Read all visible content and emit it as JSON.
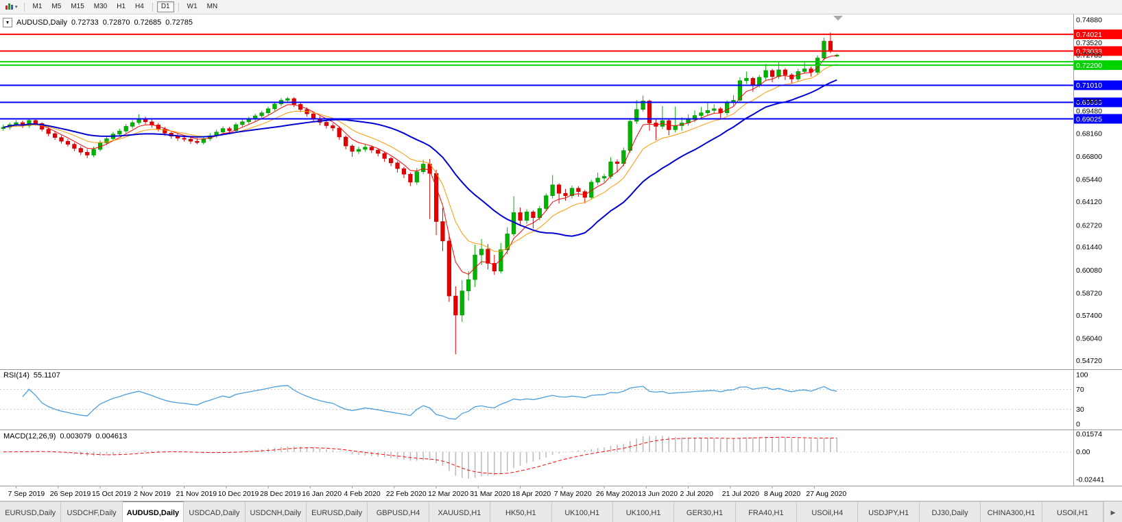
{
  "icons": {
    "occ_caret": "▼",
    "toolbar_caret": "▾",
    "tab_scroll_right": "▶"
  },
  "toolbar": {
    "timeframes": [
      "M1",
      "M5",
      "M15",
      "M30",
      "H1",
      "H4",
      "D1",
      "W1",
      "MN"
    ],
    "active_timeframe": "D1"
  },
  "chart": {
    "symbol": "AUDUSD,Daily",
    "ohlc": {
      "open": "0.72733",
      "high": "0.72870",
      "low": "0.72685",
      "close": "0.72785"
    }
  },
  "panels": {
    "rsi": {
      "title": "RSI(14)",
      "value": "55.1107",
      "axis": [
        "100",
        "70",
        "30",
        "0"
      ]
    },
    "macd": {
      "title": "MACD(12,26,9)",
      "value1": "0.003079",
      "value2": "0.004613",
      "axis": [
        "0.01574",
        "0.00",
        "-0.02441"
      ]
    }
  },
  "tabs": {
    "active_index": 2,
    "items": [
      "EURUSD,Daily",
      "USDCHF,Daily",
      "AUDUSD,Daily",
      "USDCAD,Daily",
      "USDCNH,Daily",
      "EURUSD,Daily",
      "GBPUSD,H4",
      "XAUUSD,H1",
      "HK50,H1",
      "UK100,H1",
      "UK100,H1",
      "GER30,H1",
      "FRA40,H1",
      "USOil,H4",
      "USDJPY,H1",
      "DJ30,Daily",
      "CHINA300,H1",
      "USOil,H1"
    ]
  },
  "chart_data": {
    "type": "candlestick",
    "symbol": "AUDUSD",
    "timeframe": "Daily",
    "y_range": [
      0.5472,
      0.7488
    ],
    "colors": {
      "up": "#00B400",
      "up_border": "#008800",
      "down": "#E60000",
      "down_border": "#B40000"
    },
    "y_ticks": [
      "0.74880",
      "0.73520",
      "0.70080",
      "0.69480",
      "0.68160",
      "0.66800",
      "0.65440",
      "0.64120",
      "0.62720",
      "0.61440",
      "0.60080",
      "0.58720",
      "0.57400",
      "0.56040",
      "0.54720"
    ],
    "x_labels": [
      "7 Sep 2019",
      "26 Sep 2019",
      "15 Oct 2019",
      "2 Nov 2019",
      "21 Nov 2019",
      "10 Dec 2019",
      "28 Dec 2019",
      "16 Jan 2020",
      "4 Feb 2020",
      "22 Feb 2020",
      "12 Mar 2020",
      "31 Mar 2020",
      "18 Apr 2020",
      "7 May 2020",
      "26 May 2020",
      "13 Jun 2020",
      "2 Jul 2020",
      "21 Jul 2020",
      "8 Aug 2020",
      "27 Aug 2020"
    ],
    "hlines": [
      {
        "price": 0.74021,
        "color": "#FF0000",
        "label": "0.74021"
      },
      {
        "price": 0.73033,
        "color": "#FF0000",
        "label": "0.73033"
      },
      {
        "price": 0.724,
        "color": "#00D200",
        "label": ""
      },
      {
        "price": 0.722,
        "color": "#00D200",
        "label": "0.72200"
      },
      {
        "price": 0.7101,
        "color": "#0000FF",
        "label": "0.71010"
      },
      {
        "price": 0.69999,
        "color": "#0000FF",
        "label": "0.69999"
      },
      {
        "price": 0.69025,
        "color": "#0000FF",
        "label": "0.69025"
      }
    ],
    "moving_averages": [
      {
        "period": 5,
        "method": "ema",
        "color": "#FF0000",
        "width": 1
      },
      {
        "period": 11,
        "method": "ema",
        "color": "#FF9900",
        "width": 1
      },
      {
        "period": 22,
        "method": "sma",
        "color": "#0000D2",
        "width": 2
      }
    ],
    "indicators": [
      {
        "type": "rsi",
        "label": "RSI(14) 55.1107",
        "period": 14,
        "levels": [
          70,
          30
        ],
        "color": "#4A9EDE"
      },
      {
        "type": "macd",
        "label": "MACD(12,26,9) 0.003079 0.004613",
        "fast": 12,
        "slow": 26,
        "signal": 9,
        "histogram_color": "#BDBDBD",
        "signal_color": "#FF0000"
      }
    ],
    "candles": [
      [
        0.6845,
        0.6868,
        0.6832,
        0.6852
      ],
      [
        0.6852,
        0.688,
        0.684,
        0.6868
      ],
      [
        0.6868,
        0.6895,
        0.6855,
        0.688
      ],
      [
        0.688,
        0.6892,
        0.6848,
        0.6862
      ],
      [
        0.6862,
        0.6905,
        0.685,
        0.6893
      ],
      [
        0.6893,
        0.6902,
        0.6862,
        0.6875
      ],
      [
        0.6875,
        0.6882,
        0.6828,
        0.6841
      ],
      [
        0.6841,
        0.6852,
        0.68,
        0.6815
      ],
      [
        0.6815,
        0.6828,
        0.6778,
        0.6792
      ],
      [
        0.6792,
        0.6805,
        0.6756,
        0.677
      ],
      [
        0.677,
        0.6782,
        0.6738,
        0.6752
      ],
      [
        0.6752,
        0.6762,
        0.6712,
        0.6728
      ],
      [
        0.6728,
        0.674,
        0.6688,
        0.6705
      ],
      [
        0.6705,
        0.6722,
        0.667,
        0.6688
      ],
      [
        0.6688,
        0.6738,
        0.6675,
        0.6722
      ],
      [
        0.6722,
        0.6775,
        0.671,
        0.676
      ],
      [
        0.676,
        0.68,
        0.6748,
        0.6785
      ],
      [
        0.6785,
        0.6825,
        0.6772,
        0.6812
      ],
      [
        0.6812,
        0.6845,
        0.68,
        0.683
      ],
      [
        0.683,
        0.6872,
        0.6818,
        0.6858
      ],
      [
        0.6858,
        0.6895,
        0.6845,
        0.688
      ],
      [
        0.688,
        0.6929,
        0.6868,
        0.6902
      ],
      [
        0.6902,
        0.6915,
        0.687,
        0.6885
      ],
      [
        0.6885,
        0.6898,
        0.685,
        0.6866
      ],
      [
        0.6866,
        0.6878,
        0.6828,
        0.6842
      ],
      [
        0.6842,
        0.6855,
        0.6802,
        0.6818
      ],
      [
        0.6818,
        0.6832,
        0.6785,
        0.68
      ],
      [
        0.68,
        0.6815,
        0.6772,
        0.6788
      ],
      [
        0.6788,
        0.6805,
        0.6768,
        0.6782
      ],
      [
        0.6782,
        0.6795,
        0.6754,
        0.677
      ],
      [
        0.677,
        0.6788,
        0.6752,
        0.6762
      ],
      [
        0.6762,
        0.6798,
        0.675,
        0.6785
      ],
      [
        0.6785,
        0.6818,
        0.6772,
        0.6802
      ],
      [
        0.6802,
        0.6838,
        0.679,
        0.6824
      ],
      [
        0.6824,
        0.6858,
        0.6812,
        0.6845
      ],
      [
        0.6845,
        0.6855,
        0.6815,
        0.6832
      ],
      [
        0.6832,
        0.688,
        0.682,
        0.6868
      ],
      [
        0.6868,
        0.6898,
        0.6855,
        0.6885
      ],
      [
        0.6885,
        0.6915,
        0.6872,
        0.6902
      ],
      [
        0.6902,
        0.6932,
        0.689,
        0.692
      ],
      [
        0.692,
        0.695,
        0.6908,
        0.6938
      ],
      [
        0.6938,
        0.6975,
        0.6925,
        0.6962
      ],
      [
        0.6962,
        0.7002,
        0.695,
        0.699
      ],
      [
        0.699,
        0.7025,
        0.6978,
        0.7012
      ],
      [
        0.7012,
        0.7032,
        0.6995,
        0.7022
      ],
      [
        0.7022,
        0.703,
        0.6972,
        0.6988
      ],
      [
        0.6988,
        0.7,
        0.6942,
        0.6958
      ],
      [
        0.6958,
        0.697,
        0.6915,
        0.6932
      ],
      [
        0.6932,
        0.6945,
        0.6888,
        0.6905
      ],
      [
        0.6905,
        0.6918,
        0.6865,
        0.6882
      ],
      [
        0.6882,
        0.6895,
        0.6845,
        0.6862
      ],
      [
        0.6862,
        0.6875,
        0.683,
        0.6848
      ],
      [
        0.6848,
        0.6858,
        0.6778,
        0.6795
      ],
      [
        0.6795,
        0.6805,
        0.6722,
        0.6742
      ],
      [
        0.6742,
        0.6752,
        0.6678,
        0.671
      ],
      [
        0.671,
        0.6738,
        0.6695,
        0.6722
      ],
      [
        0.6722,
        0.675,
        0.6708,
        0.6735
      ],
      [
        0.6735,
        0.6745,
        0.67,
        0.6718
      ],
      [
        0.6718,
        0.6728,
        0.668,
        0.6698
      ],
      [
        0.6698,
        0.6708,
        0.6648,
        0.6668
      ],
      [
        0.6668,
        0.6678,
        0.6622,
        0.6642
      ],
      [
        0.6642,
        0.6652,
        0.6585,
        0.6608
      ],
      [
        0.6608,
        0.6618,
        0.6552,
        0.6575
      ],
      [
        0.6575,
        0.6585,
        0.6505,
        0.6528
      ],
      [
        0.6528,
        0.6612,
        0.6512,
        0.659
      ],
      [
        0.659,
        0.666,
        0.6575,
        0.6635
      ],
      [
        0.6635,
        0.6665,
        0.631,
        0.658
      ],
      [
        0.658,
        0.6602,
        0.6215,
        0.6295
      ],
      [
        0.6295,
        0.6375,
        0.612,
        0.618
      ],
      [
        0.618,
        0.6218,
        0.582,
        0.5855
      ],
      [
        0.5855,
        0.5912,
        0.551,
        0.5742
      ],
      [
        0.5742,
        0.5948,
        0.5702,
        0.5885
      ],
      [
        0.5885,
        0.6002,
        0.5828,
        0.5952
      ],
      [
        0.5952,
        0.6158,
        0.5908,
        0.6098
      ],
      [
        0.6098,
        0.6192,
        0.6038,
        0.6132
      ],
      [
        0.6132,
        0.6162,
        0.6012,
        0.6048
      ],
      [
        0.6048,
        0.6098,
        0.598,
        0.6002
      ],
      [
        0.6002,
        0.6168,
        0.5988,
        0.6128
      ],
      [
        0.6128,
        0.6262,
        0.6102,
        0.6222
      ],
      [
        0.6222,
        0.6445,
        0.6208,
        0.6348
      ],
      [
        0.6348,
        0.6378,
        0.6268,
        0.6302
      ],
      [
        0.6302,
        0.6368,
        0.6282,
        0.6352
      ],
      [
        0.6352,
        0.6362,
        0.6255,
        0.6318
      ],
      [
        0.6318,
        0.6388,
        0.6302,
        0.6372
      ],
      [
        0.6372,
        0.6462,
        0.6358,
        0.6448
      ],
      [
        0.6448,
        0.657,
        0.6432,
        0.6512
      ],
      [
        0.6512,
        0.6522,
        0.6402,
        0.6462
      ],
      [
        0.6462,
        0.6488,
        0.6418,
        0.6448
      ],
      [
        0.6448,
        0.6508,
        0.6432,
        0.6492
      ],
      [
        0.6492,
        0.6505,
        0.6442,
        0.6472
      ],
      [
        0.6472,
        0.6482,
        0.6403,
        0.6438
      ],
      [
        0.6438,
        0.6542,
        0.6425,
        0.6528
      ],
      [
        0.6528,
        0.6585,
        0.6512,
        0.6552
      ],
      [
        0.6552,
        0.6578,
        0.6528,
        0.6562
      ],
      [
        0.6562,
        0.6675,
        0.6548,
        0.6648
      ],
      [
        0.6648,
        0.6662,
        0.6585,
        0.6638
      ],
      [
        0.6638,
        0.6732,
        0.6622,
        0.6715
      ],
      [
        0.6715,
        0.6905,
        0.6702,
        0.6888
      ],
      [
        0.6888,
        0.7013,
        0.6872,
        0.6958
      ],
      [
        0.6958,
        0.704,
        0.6945,
        0.7008
      ],
      [
        0.7008,
        0.7015,
        0.6832,
        0.6878
      ],
      [
        0.6878,
        0.6902,
        0.6776,
        0.6858
      ],
      [
        0.6858,
        0.6977,
        0.6842,
        0.6892
      ],
      [
        0.6892,
        0.6905,
        0.6805,
        0.6838
      ],
      [
        0.6838,
        0.6975,
        0.6822,
        0.6862
      ],
      [
        0.6862,
        0.6912,
        0.6832,
        0.6878
      ],
      [
        0.6878,
        0.6928,
        0.6862,
        0.6898
      ],
      [
        0.6898,
        0.6952,
        0.6882,
        0.6922
      ],
      [
        0.6922,
        0.6972,
        0.6908,
        0.6938
      ],
      [
        0.6938,
        0.6998,
        0.6922,
        0.6952
      ],
      [
        0.6952,
        0.6988,
        0.6932,
        0.6962
      ],
      [
        0.6962,
        0.6972,
        0.6902,
        0.6938
      ],
      [
        0.6938,
        0.7012,
        0.6922,
        0.6998
      ],
      [
        0.6998,
        0.7042,
        0.6982,
        0.7012
      ],
      [
        0.7012,
        0.7148,
        0.6998,
        0.7128
      ],
      [
        0.7128,
        0.7182,
        0.7108,
        0.7142
      ],
      [
        0.7142,
        0.7152,
        0.7062,
        0.7102
      ],
      [
        0.7102,
        0.7162,
        0.7088,
        0.7148
      ],
      [
        0.7148,
        0.7227,
        0.7132,
        0.7188
      ],
      [
        0.7188,
        0.7198,
        0.7118,
        0.7152
      ],
      [
        0.7152,
        0.7243,
        0.7138,
        0.7192
      ],
      [
        0.7192,
        0.7202,
        0.7132,
        0.7162
      ],
      [
        0.7162,
        0.7172,
        0.7112,
        0.7138
      ],
      [
        0.7138,
        0.7198,
        0.7122,
        0.7182
      ],
      [
        0.7182,
        0.7243,
        0.7168,
        0.7198
      ],
      [
        0.7198,
        0.7212,
        0.7152,
        0.7178
      ],
      [
        0.7178,
        0.7278,
        0.7162,
        0.7262
      ],
      [
        0.7262,
        0.7382,
        0.7248,
        0.7362
      ],
      [
        0.7362,
        0.7413,
        0.7292,
        0.7305
      ],
      [
        0.7273,
        0.7287,
        0.7269,
        0.7279
      ]
    ]
  }
}
